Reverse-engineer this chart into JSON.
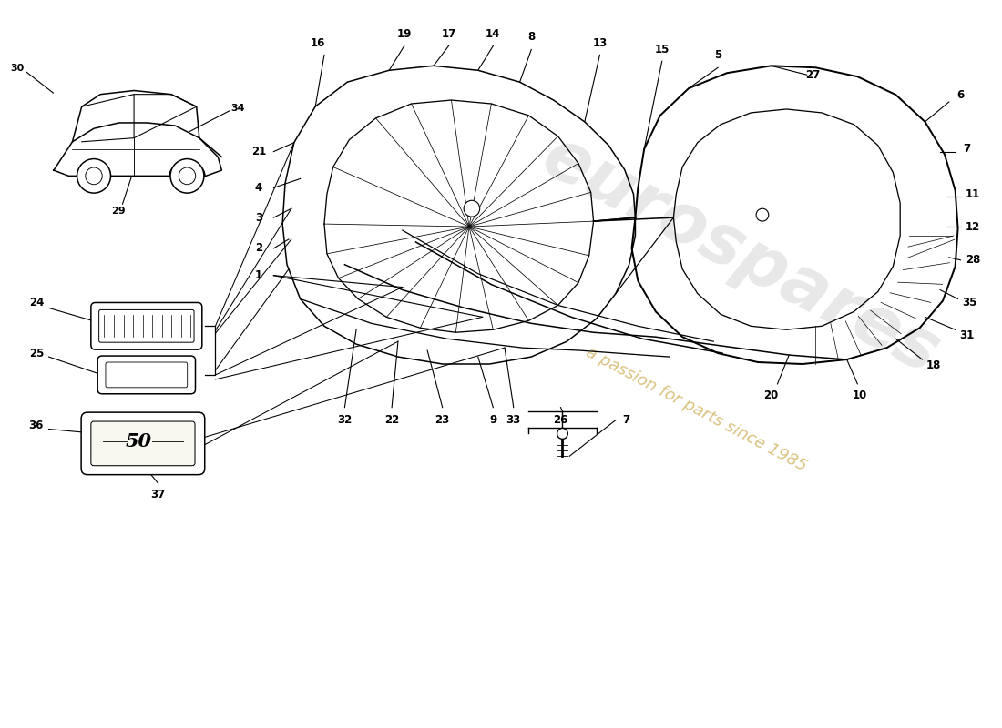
{
  "bg_color": "#ffffff",
  "line_color": "#000000",
  "figure_size": [
    11.0,
    8.0
  ],
  "dpi": 100,
  "watermark_text": "eurospares",
  "watermark_sub": "a passion for parts since 1985",
  "watermark_color_main": "#cccccc",
  "watermark_color_sub": "#d4b86a"
}
